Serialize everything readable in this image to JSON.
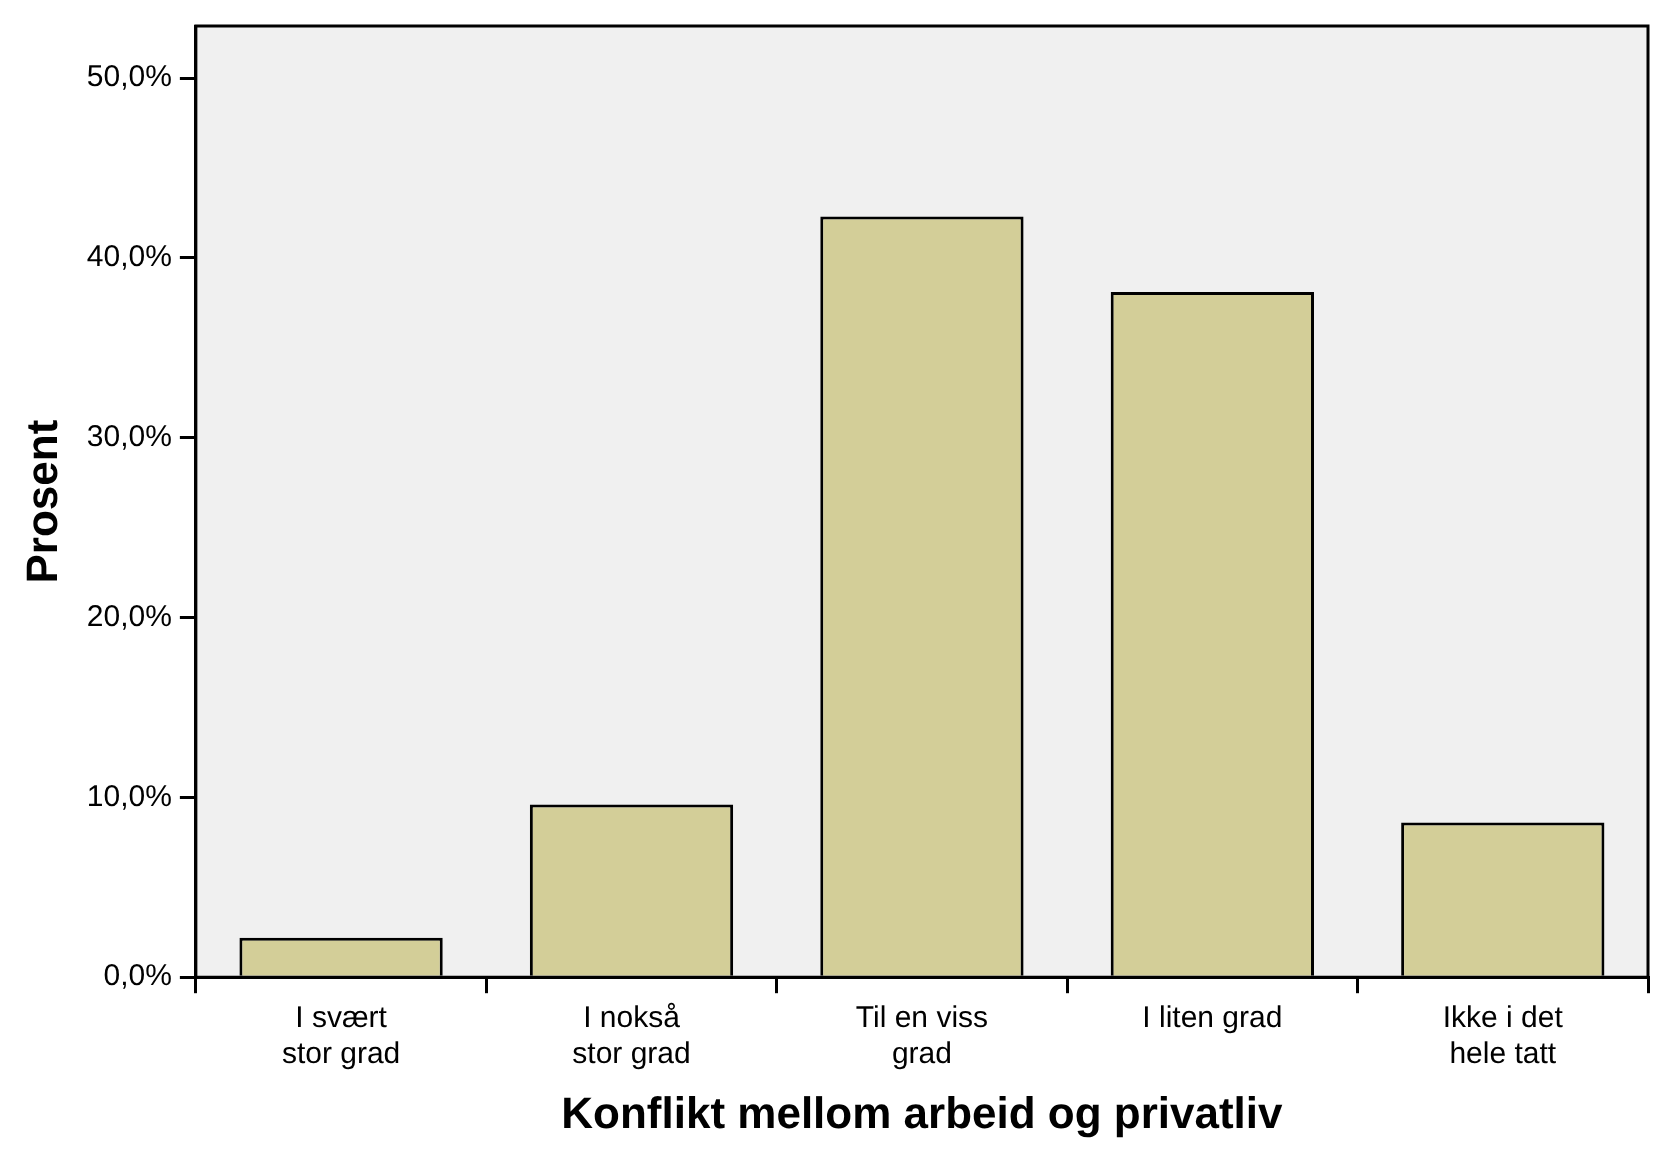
{
  "chart_data": {
    "type": "bar",
    "xlabel": "Konflikt mellom arbeid og privatliv",
    "ylabel": "Prosent",
    "categories": [
      "I svært\nstor grad",
      "I nokså\nstor grad",
      "Til en viss\ngrad",
      "I liten grad",
      "Ikke i det\nhele tatt"
    ],
    "values": [
      2.2,
      9.6,
      42.3,
      38.1,
      8.6
    ],
    "color": "#d3ce98",
    "ylim": [
      0,
      52.9
    ],
    "yticks": [
      {
        "value": 0,
        "label": "0,0%"
      },
      {
        "value": 10,
        "label": "10,0%"
      },
      {
        "value": 20,
        "label": "20,0%"
      },
      {
        "value": 30,
        "label": "30,0%"
      },
      {
        "value": 40,
        "label": "40,0%"
      },
      {
        "value": 50,
        "label": "50,0%"
      }
    ],
    "grid": false,
    "legend": false
  }
}
